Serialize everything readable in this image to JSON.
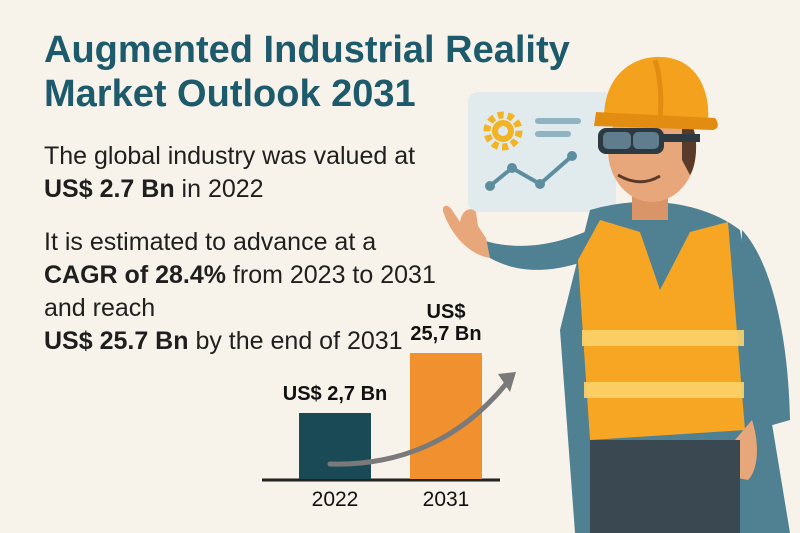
{
  "title": "Augmented Industrial Reality Market Outlook 2031",
  "paragraph1": {
    "pre": "The global industry was valued at",
    "value": "US$ 2.7 Bn",
    "post": " in 2022"
  },
  "paragraph2": {
    "pre": "It is estimated to advance at a",
    "cagr": "CAGR of 28.4%",
    "mid": " from 2023 to 2031 and reach",
    "value": "US$ 25.7 Bn",
    "post": " by the end of 2031"
  },
  "chart_data": {
    "type": "bar",
    "categories": [
      "2022",
      "2031"
    ],
    "values": [
      2.7,
      25.7
    ],
    "data_labels": [
      "US$ 2,7 Bn",
      "US$ 25,7 Bn"
    ],
    "colors": [
      "#1b4a57",
      "#f0902f"
    ]
  },
  "colors": {
    "title": "#1d5a6b",
    "background": "#f7f3ea",
    "arrow": "#7a7a7a",
    "helmet": "#f4a21d",
    "vest": "#f6a623",
    "shirt": "#4f8193"
  },
  "icons": [
    "gear-icon",
    "line-chart-icon",
    "hard-hat-icon",
    "ar-glasses-icon"
  ]
}
